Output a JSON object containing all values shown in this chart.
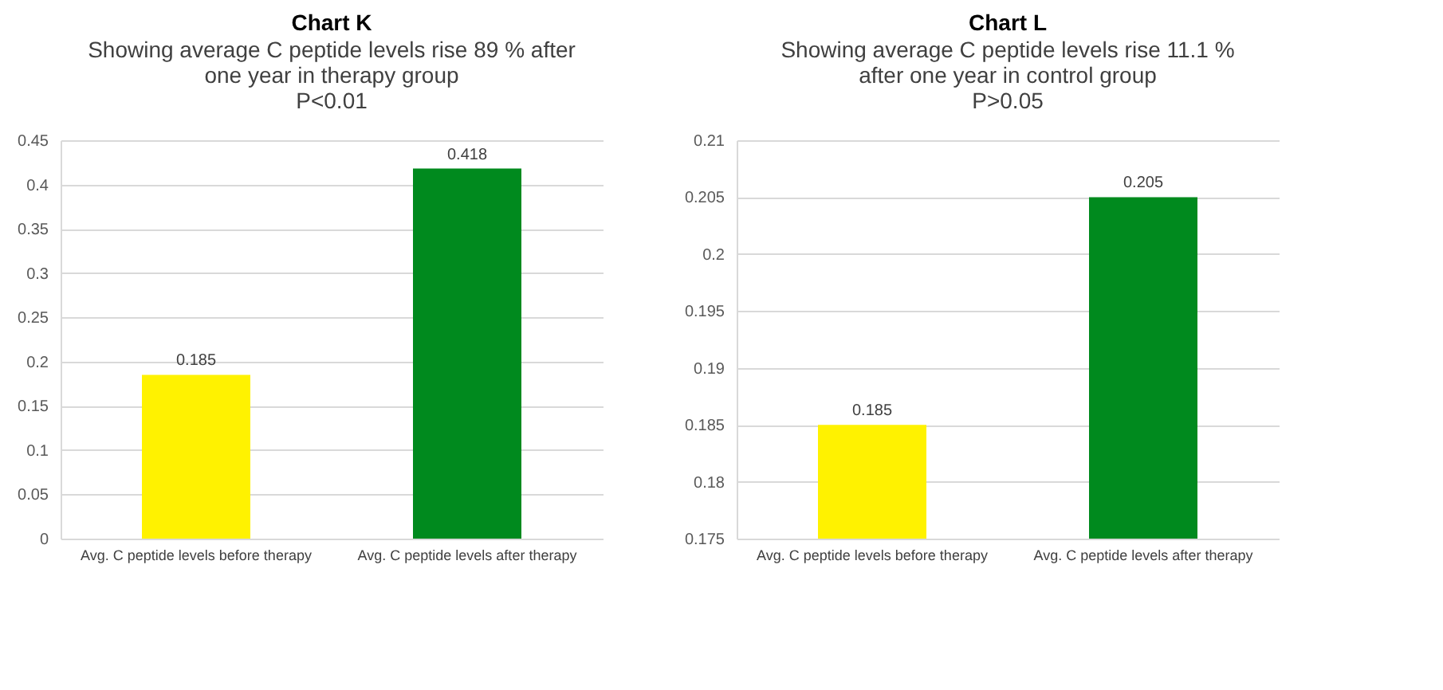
{
  "chart_data": [
    {
      "type": "bar",
      "title": "Chart K",
      "subtitle": "Showing average C peptide levels rise 89 % after\none year in therapy group\nP<0.01",
      "categories": [
        "Avg. C peptide levels before therapy",
        "Avg. C peptide levels after therapy"
      ],
      "values": [
        0.185,
        0.418
      ],
      "colors": [
        "#fff200",
        "#008a1e"
      ],
      "ylim": [
        0,
        0.45
      ],
      "yticks": [
        0,
        0.05,
        0.1,
        0.15,
        0.2,
        0.25,
        0.3,
        0.35,
        0.4,
        0.45
      ],
      "grid": "y",
      "data_labels": true
    },
    {
      "type": "bar",
      "title": "Chart L",
      "subtitle": "Showing average C peptide levels rise 11.1 %\nafter one year in control group\nP>0.05",
      "categories": [
        "Avg. C peptide levels before therapy",
        "Avg. C peptide levels after therapy"
      ],
      "values": [
        0.185,
        0.205
      ],
      "colors": [
        "#fff200",
        "#008a1e"
      ],
      "ylim": [
        0.175,
        0.21
      ],
      "yticks": [
        0.175,
        0.18,
        0.185,
        0.19,
        0.195,
        0.2,
        0.205,
        0.21
      ],
      "grid": "y",
      "data_labels": true
    }
  ]
}
